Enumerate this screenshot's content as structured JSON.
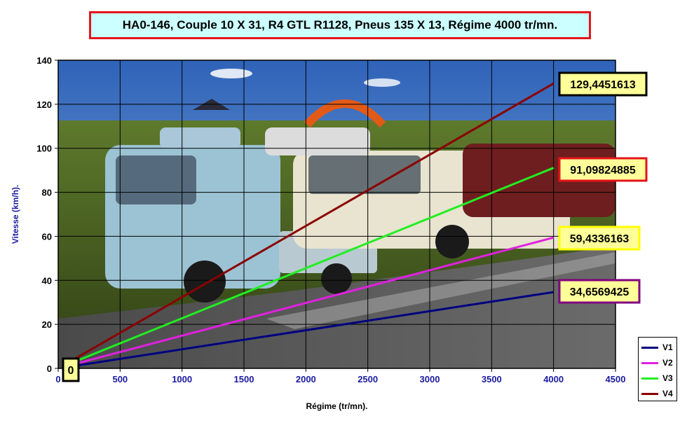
{
  "chart_data": {
    "type": "line",
    "title": "HA0-146, Couple 10 X 31, R4 GTL R1128, Pneus 135 X 13, Régime 4000 tr/mn.",
    "xlabel": "Régime (tr/mn).",
    "ylabel": "Vitesse (km/h).",
    "xlim": [
      0,
      4500
    ],
    "ylim": [
      0,
      140
    ],
    "x_ticks": [
      "0",
      "500",
      "1000",
      "1500",
      "2000",
      "2500",
      "3000",
      "3500",
      "4000",
      "4500"
    ],
    "y_ticks": [
      "0",
      "20",
      "40",
      "60",
      "80",
      "100",
      "120",
      "140"
    ],
    "grid": true,
    "legend_position": "bottom-right",
    "series": [
      {
        "name": "V1",
        "color": "#000080",
        "x": [
          100,
          4000
        ],
        "y": [
          0.8664,
          34.6569425
        ]
      },
      {
        "name": "V2",
        "color": "#e020e0",
        "x": [
          100,
          4000
        ],
        "y": [
          1.4858,
          59.4336163
        ]
      },
      {
        "name": "V3",
        "color": "#22ee22",
        "x": [
          100,
          4000
        ],
        "y": [
          2.2775,
          91.09824885
        ]
      },
      {
        "name": "V4",
        "color": "#8b0000",
        "x": [
          100,
          4000
        ],
        "y": [
          3.2361,
          129.4451613
        ]
      }
    ],
    "annotations": [
      {
        "text": "0",
        "x": 100,
        "y": 0,
        "border_color": "#000000"
      },
      {
        "text": "34,6569425",
        "x": 4000,
        "y": 34.6569425,
        "border_color": "#800080"
      },
      {
        "text": "59,4336163",
        "x": 4000,
        "y": 59.4336163,
        "border_color": "#ffff00"
      },
      {
        "text": "91,09824885",
        "x": 4000,
        "y": 91.09824885,
        "border_color": "#e4141b"
      },
      {
        "text": "129,4451613",
        "x": 4000,
        "y": 129.4451613,
        "border_color": "#000000"
      }
    ],
    "annotation_fill": "#ffff99",
    "title_fill": "#ccffff",
    "title_border": "#e4141b",
    "axis_label_color": "#1a1aa0",
    "background": "photo of classic Renault 4 cars parked on grass"
  }
}
